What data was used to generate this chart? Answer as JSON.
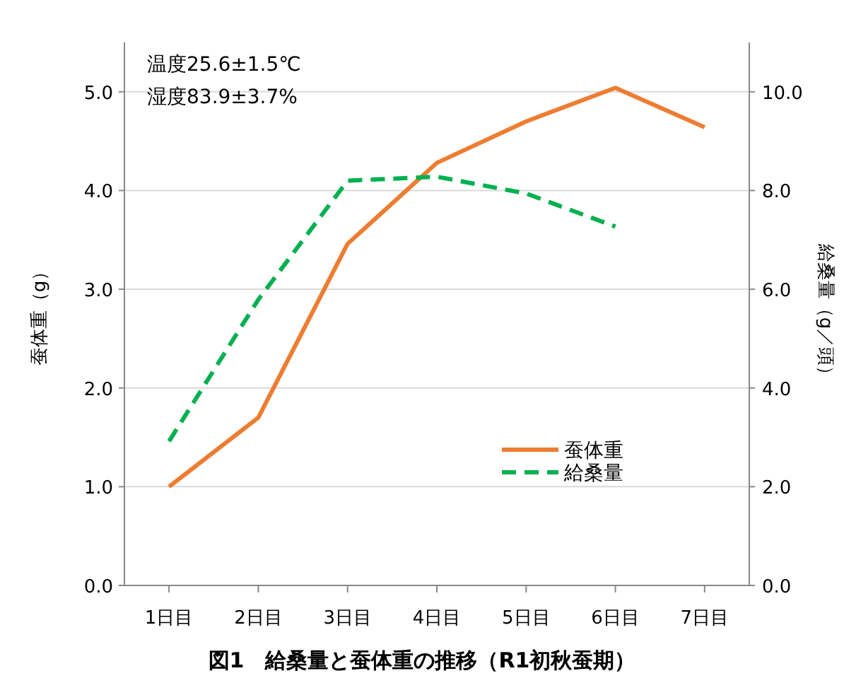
{
  "chart_data": {
    "type": "line",
    "title": "図1　給桑量と蚕体重の推移（R1初秋蚕期）",
    "ylabel": "蚕体重（g）",
    "y2label": "給桑量（g／頭）",
    "annotations": [
      "温度25.6±1.5℃",
      "湿度83.9±3.7%"
    ],
    "categories": [
      "1日目",
      "2日目",
      "3日目",
      "4日目",
      "5日目",
      "6日目",
      "7日目"
    ],
    "series": [
      {
        "name": "蚕体重",
        "color": "#ed7d31",
        "line_style": "solid",
        "values": [
          1.0,
          1.7,
          3.46,
          4.28,
          4.7,
          5.04,
          4.64
        ]
      },
      {
        "name": "給桑量",
        "color": "#00b050",
        "line_style": "dashed",
        "axis": "y2",
        "values": [
          2.92,
          5.79,
          8.2,
          8.28,
          7.94,
          7.27,
          null
        ]
      }
    ],
    "ylim": [
      0,
      5.5
    ],
    "yticks": [
      {
        "value": 0,
        "label": "0.0"
      },
      {
        "value": 1,
        "label": "1.0"
      },
      {
        "value": 2,
        "label": "2.0"
      },
      {
        "value": 3,
        "label": "3.0"
      },
      {
        "value": 4,
        "label": "4.0"
      },
      {
        "value": 5,
        "label": "5.0"
      }
    ],
    "y2lim": [
      0,
      11
    ],
    "y2ticks": [
      {
        "value": 0,
        "label": "0.0"
      },
      {
        "value": 2,
        "label": "2.0"
      },
      {
        "value": 4,
        "label": "4.0"
      },
      {
        "value": 6,
        "label": "6.0"
      },
      {
        "value": 8,
        "label": "8.0"
      },
      {
        "value": 10,
        "label": "10.0"
      }
    ],
    "grid": "y",
    "legend": "bottom right",
    "marker": "none"
  }
}
